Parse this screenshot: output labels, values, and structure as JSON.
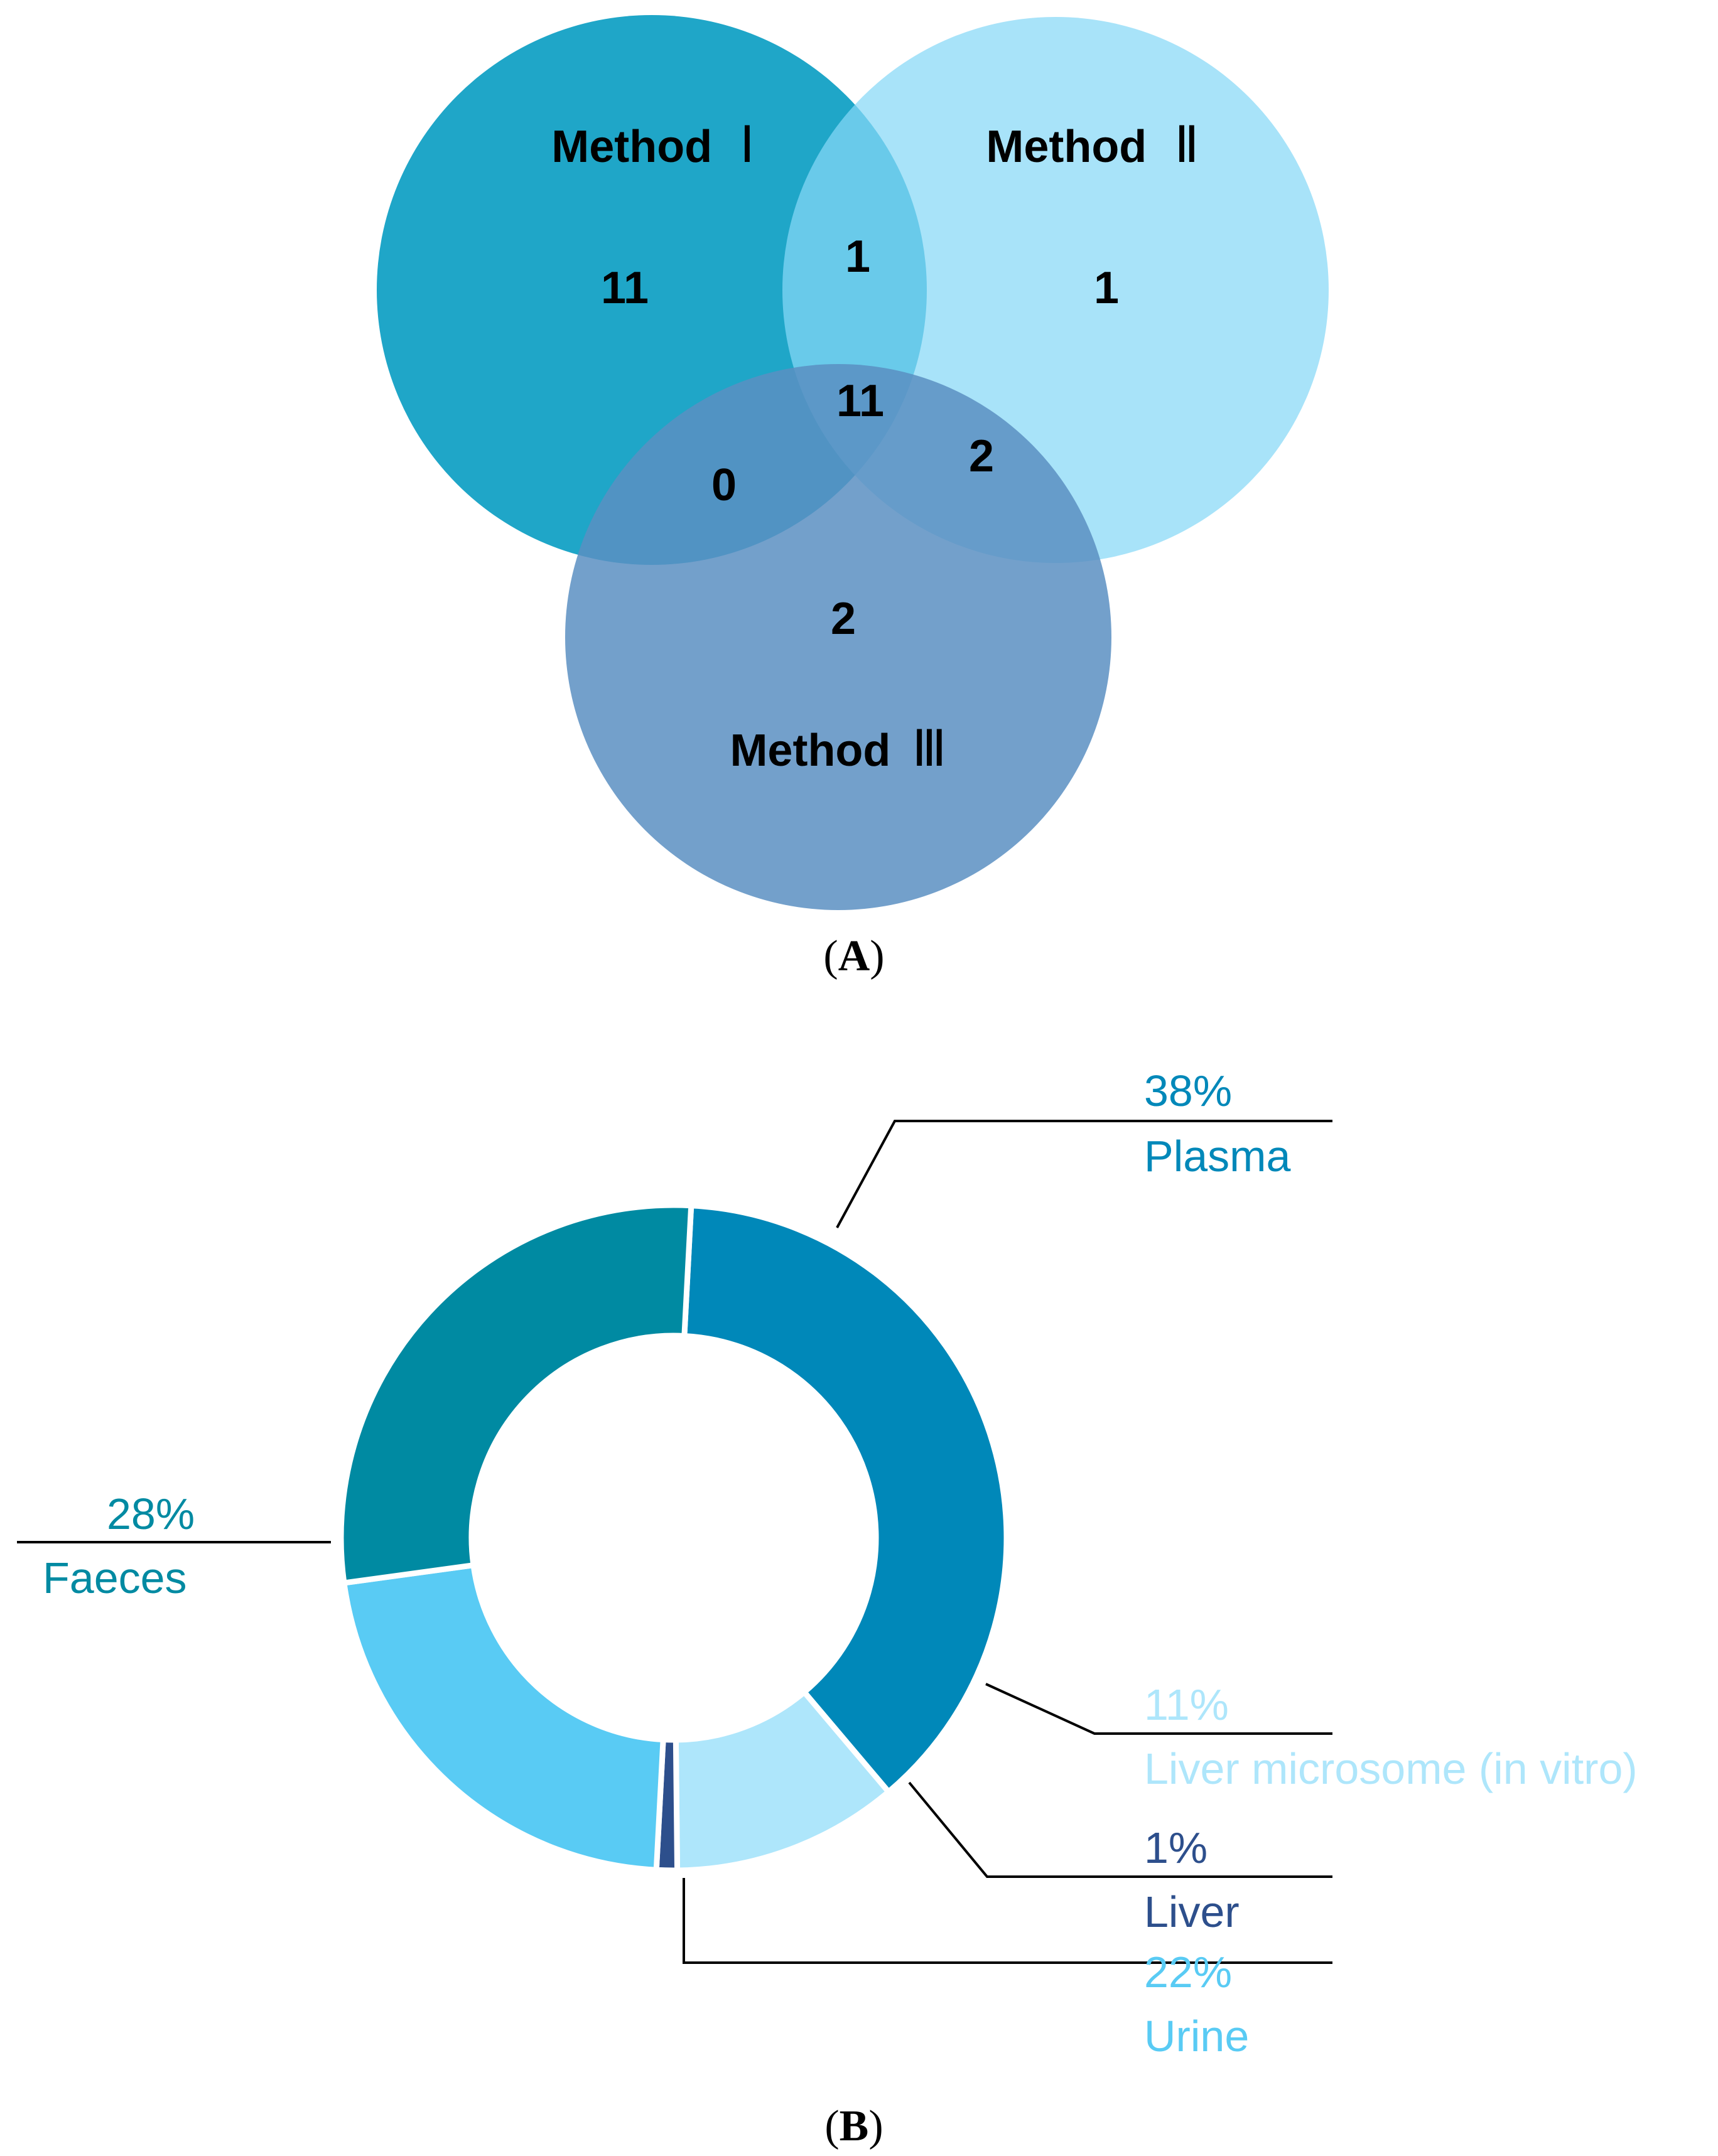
{
  "panel_a": {
    "label_open": "(",
    "label_letter": "A",
    "label_close": ")",
    "sets": [
      {
        "name": "Method",
        "roman": "Ⅰ",
        "color": "#1fa6c8"
      },
      {
        "name": "Method",
        "roman": "Ⅱ",
        "color": "#86d8f6"
      },
      {
        "name": "Method",
        "roman": "Ⅲ",
        "color": "#5a8fc2"
      }
    ],
    "regions": {
      "only_1": "11",
      "only_2": "1",
      "only_3": "2",
      "r12": "1",
      "r13": "0",
      "r23": "2",
      "r123": "11"
    }
  },
  "panel_b": {
    "label_open": "(",
    "label_letter": "B",
    "label_close": ")"
  },
  "chart_data": {
    "type": "pie",
    "donut": true,
    "slices": [
      {
        "name": "Plasma",
        "value": 38,
        "label": "38%",
        "color": "#0088b9"
      },
      {
        "name": "Liver microsome (in vitro)",
        "value": 11,
        "label": "11%",
        "color": "#aee6fb"
      },
      {
        "name": "Liver",
        "value": 1,
        "label": "1%",
        "color": "#2d4f8c"
      },
      {
        "name": "Urine",
        "value": 22,
        "label": "22%",
        "color": "#59cbf4"
      },
      {
        "name": "Faeces",
        "value": 28,
        "label": "28%",
        "color": "#008aa2"
      }
    ]
  }
}
